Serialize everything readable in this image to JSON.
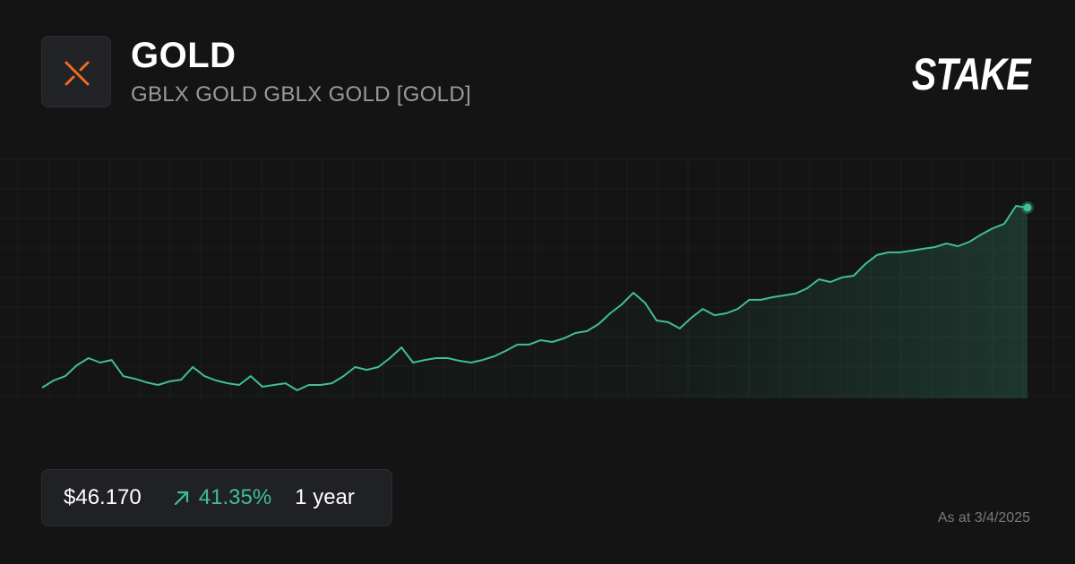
{
  "header": {
    "title": "GOLD",
    "subtitle": "GBLX GOLD GBLX GOLD [GOLD]"
  },
  "brand": "STAKE",
  "chart_data": {
    "type": "line",
    "color": "#3fbf95",
    "values": [
      32.66,
      33.2,
      33.53,
      34.34,
      34.88,
      34.54,
      34.74,
      33.53,
      33.33,
      33.06,
      32.86,
      33.13,
      33.26,
      34.21,
      33.53,
      33.2,
      32.99,
      32.86,
      33.53,
      32.73,
      32.86,
      32.99,
      32.46,
      32.86,
      32.86,
      32.99,
      33.53,
      34.21,
      34.0,
      34.21,
      34.88,
      35.68,
      34.54,
      34.74,
      34.88,
      34.88,
      34.68,
      34.54,
      34.74,
      35.01,
      35.42,
      35.89,
      35.89,
      36.22,
      36.09,
      36.36,
      36.76,
      36.9,
      37.43,
      38.24,
      38.91,
      39.78,
      39.04,
      37.7,
      37.57,
      37.1,
      37.9,
      38.57,
      38.1,
      38.24,
      38.57,
      39.25,
      39.25,
      39.45,
      39.58,
      39.72,
      40.12,
      40.79,
      40.59,
      40.93,
      41.06,
      41.93,
      42.61,
      42.81,
      42.81,
      42.94,
      43.08,
      43.21,
      43.48,
      43.28,
      43.61,
      44.15,
      44.62,
      44.96,
      46.3,
      46.17
    ]
  },
  "summary": {
    "price": "$46.170",
    "change": "41.35%",
    "period": "1 year"
  },
  "footer": {
    "as_of": "As at 3/4/2025"
  }
}
